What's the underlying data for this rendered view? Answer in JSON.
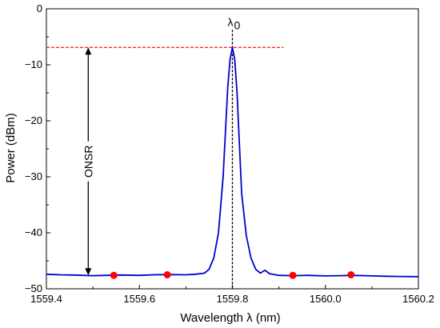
{
  "chart_data": {
    "type": "line",
    "title": "",
    "xlabel": "Wavelength λ (nm)",
    "ylabel": "Power (dBm)",
    "xlim": [
      1559.4,
      1560.2
    ],
    "ylim": [
      -50,
      0
    ],
    "x_ticks": [
      1559.4,
      1559.6,
      1559.8,
      1560.0,
      1560.2
    ],
    "x_tick_labels": [
      "1559.4",
      "1559.6",
      "1559.8",
      "1560.0",
      "1560.2"
    ],
    "y_ticks": [
      -50,
      -40,
      -30,
      -20,
      -10,
      0
    ],
    "y_tick_labels": [
      "−50",
      "−40",
      "−30",
      "−20",
      "−10",
      "0"
    ],
    "grid": false,
    "series": [
      {
        "color": "#0000cc",
        "points": [
          [
            1559.4,
            -47.4
          ],
          [
            1559.43,
            -47.5
          ],
          [
            1559.46,
            -47.55
          ],
          [
            1559.5,
            -47.65
          ],
          [
            1559.53,
            -47.6
          ],
          [
            1559.56,
            -47.55
          ],
          [
            1559.6,
            -47.6
          ],
          [
            1559.63,
            -47.5
          ],
          [
            1559.66,
            -47.45
          ],
          [
            1559.7,
            -47.5
          ],
          [
            1559.72,
            -47.4
          ],
          [
            1559.74,
            -47.2
          ],
          [
            1559.75,
            -46.5
          ],
          [
            1559.76,
            -44.5
          ],
          [
            1559.77,
            -40.0
          ],
          [
            1559.78,
            -30.0
          ],
          [
            1559.785,
            -22.0
          ],
          [
            1559.79,
            -14.0
          ],
          [
            1559.795,
            -9.0
          ],
          [
            1559.8,
            -6.9
          ],
          [
            1559.805,
            -9.0
          ],
          [
            1559.81,
            -15.0
          ],
          [
            1559.815,
            -24.0
          ],
          [
            1559.82,
            -33.0
          ],
          [
            1559.83,
            -40.5
          ],
          [
            1559.84,
            -44.5
          ],
          [
            1559.85,
            -46.5
          ],
          [
            1559.86,
            -47.2
          ],
          [
            1559.87,
            -46.7
          ],
          [
            1559.88,
            -47.3
          ],
          [
            1559.9,
            -47.6
          ],
          [
            1559.93,
            -47.65
          ],
          [
            1559.96,
            -47.6
          ],
          [
            1560.0,
            -47.7
          ],
          [
            1560.03,
            -47.65
          ],
          [
            1560.06,
            -47.6
          ],
          [
            1560.1,
            -47.7
          ],
          [
            1560.13,
            -47.75
          ],
          [
            1560.16,
            -47.8
          ],
          [
            1560.2,
            -47.85
          ]
        ]
      }
    ],
    "markers": {
      "color": "#ff0000",
      "points": [
        [
          1559.545,
          -47.6
        ],
        [
          1559.66,
          -47.5
        ],
        [
          1559.93,
          -47.6
        ],
        [
          1560.055,
          -47.5
        ]
      ]
    },
    "annotations": {
      "center_label": "λ",
      "center_subscript": "0",
      "center_x": 1559.8,
      "peak_y": -6.9,
      "peak_line_x_end": 1559.91,
      "peak_line_color": "#ff0000",
      "onsr_label": "ONSR",
      "onsr_x": 1559.49,
      "onsr_y_top": -6.9,
      "onsr_y_bottom": -47.6
    }
  }
}
